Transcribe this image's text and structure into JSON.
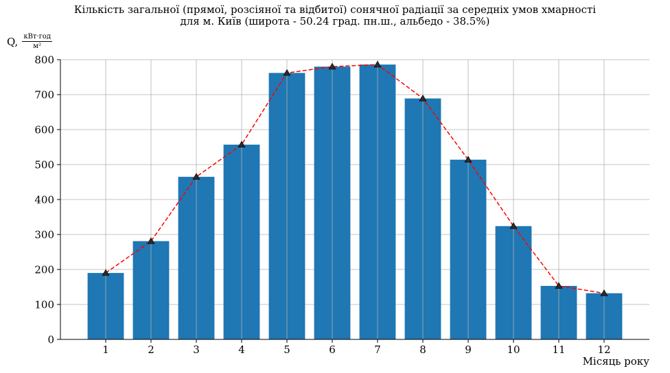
{
  "chart_data": {
    "type": "bar",
    "title_line1": "Кількість загальної (прямої, розсіяної та відбитої) сонячної радіації за середніх умов хмарності",
    "title_line2": "для м. Київ (широта - 50.24 град. пн.ш., альбедо - 38.5%)",
    "ylabel_prefix": "Q,",
    "ylabel_unit_numerator": "кВт·год",
    "ylabel_unit_denominator": "м²",
    "xlabel": "Місяць року",
    "categories": [
      "1",
      "2",
      "3",
      "4",
      "5",
      "6",
      "7",
      "8",
      "9",
      "10",
      "11",
      "12"
    ],
    "values": [
      190,
      281,
      465,
      557,
      762,
      780,
      786,
      689,
      514,
      324,
      153,
      132
    ],
    "line_overlay": {
      "style": "dashed",
      "marker": "triangle",
      "values": [
        190,
        281,
        465,
        557,
        762,
        780,
        786,
        689,
        514,
        324,
        153,
        132
      ]
    },
    "ylim": [
      0,
      800
    ],
    "yticks": [
      0,
      100,
      200,
      300,
      400,
      500,
      600,
      700,
      800
    ],
    "grid": true,
    "colors": {
      "bar": "#1f77b4",
      "line": "#ff0000",
      "marker": "#2b2b2b",
      "grid": "#b0b0b0"
    }
  }
}
